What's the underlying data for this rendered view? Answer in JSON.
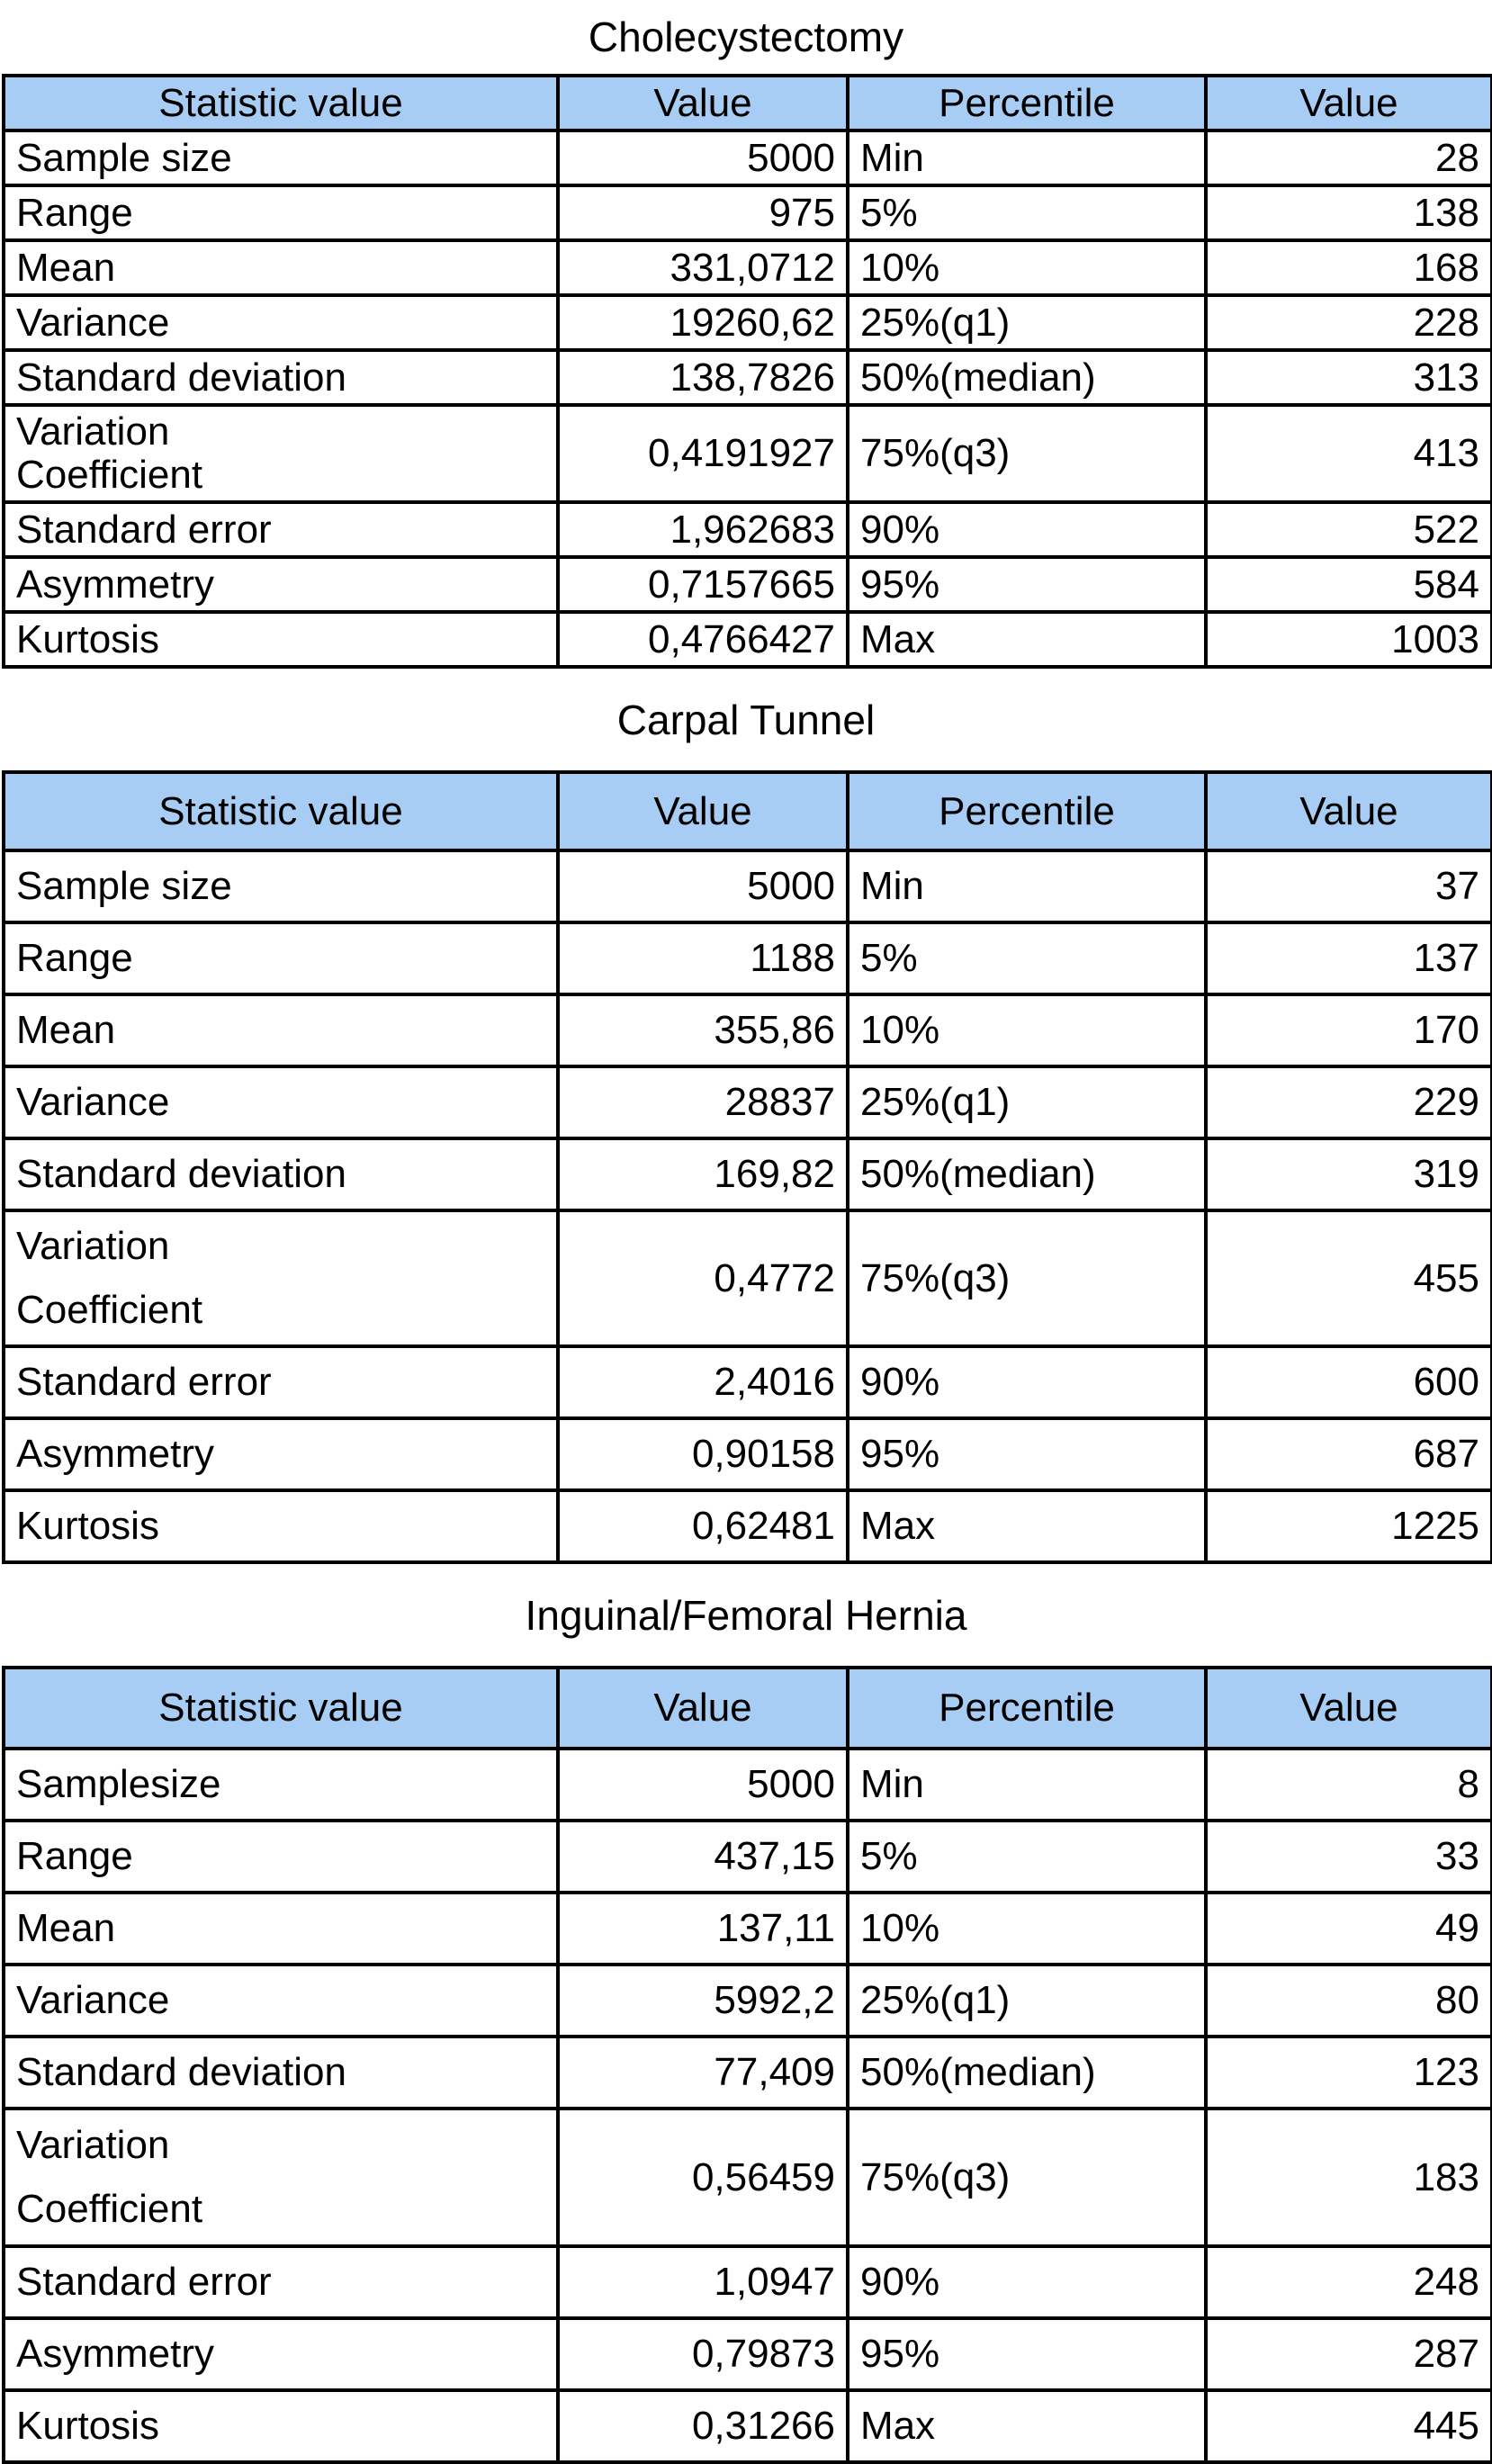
{
  "tables": [
    {
      "title": "Cholecystectomy",
      "header": [
        "Statistic value",
        "Value",
        "Percentile",
        "Value"
      ],
      "rows": [
        [
          "Sample size",
          "5000",
          "Min",
          "28"
        ],
        [
          "Range",
          "975",
          "5%",
          "138"
        ],
        [
          "Mean",
          "331,0712",
          "10%",
          "168"
        ],
        [
          "Variance",
          "19260,62",
          "25%(q1)",
          "228"
        ],
        [
          "Standard deviation",
          "138,7826",
          "50%(median)",
          "313"
        ],
        [
          "Variation Coefficient",
          "0,4191927",
          "75%(q3)",
          "413"
        ],
        [
          "Standard error",
          "1,962683",
          "90%",
          "522"
        ],
        [
          "Asymmetry",
          "0,7157665",
          "95%",
          "584"
        ],
        [
          "Kurtosis",
          "0,4766427",
          "Max",
          "1003"
        ]
      ]
    },
    {
      "title": "Carpal Tunnel",
      "header": [
        "Statistic value",
        "Value",
        "Percentile",
        "Value"
      ],
      "rows": [
        [
          "Sample size",
          "5000",
          "Min",
          "37"
        ],
        [
          "Range",
          "1188",
          "5%",
          "137"
        ],
        [
          "Mean",
          "355,86",
          "10%",
          "170"
        ],
        [
          "Variance",
          "28837",
          "25%(q1)",
          "229"
        ],
        [
          "Standard deviation",
          "169,82",
          "50%(median)",
          "319"
        ],
        [
          "Variation Coefficient",
          "0,4772",
          "75%(q3)",
          "455"
        ],
        [
          "Standard error",
          "2,4016",
          "90%",
          "600"
        ],
        [
          "Asymmetry",
          "0,90158",
          "95%",
          "687"
        ],
        [
          "Kurtosis",
          "0,62481",
          "Max",
          "1225"
        ]
      ]
    },
    {
      "title": "Inguinal/Femoral Hernia",
      "header": [
        "Statistic value",
        "Value",
        "Percentile",
        "Value"
      ],
      "rows": [
        [
          "Samplesize",
          "5000",
          "Min",
          "8"
        ],
        [
          "Range",
          "437,15",
          "5%",
          "33"
        ],
        [
          "Mean",
          "137,11",
          "10%",
          "49"
        ],
        [
          "Variance",
          "5992,2",
          "25%(q1)",
          "80"
        ],
        [
          "Standard deviation",
          "77,409",
          "50%(median)",
          "123"
        ],
        [
          "Variation Coefficient",
          "0,56459",
          "75%(q3)",
          "183"
        ],
        [
          "Standard error",
          "1,0947",
          "90%",
          "248"
        ],
        [
          "Asymmetry",
          "0,79873",
          "95%",
          "287"
        ],
        [
          "Kurtosis",
          "0,31266",
          "Max",
          "445"
        ]
      ]
    }
  ]
}
